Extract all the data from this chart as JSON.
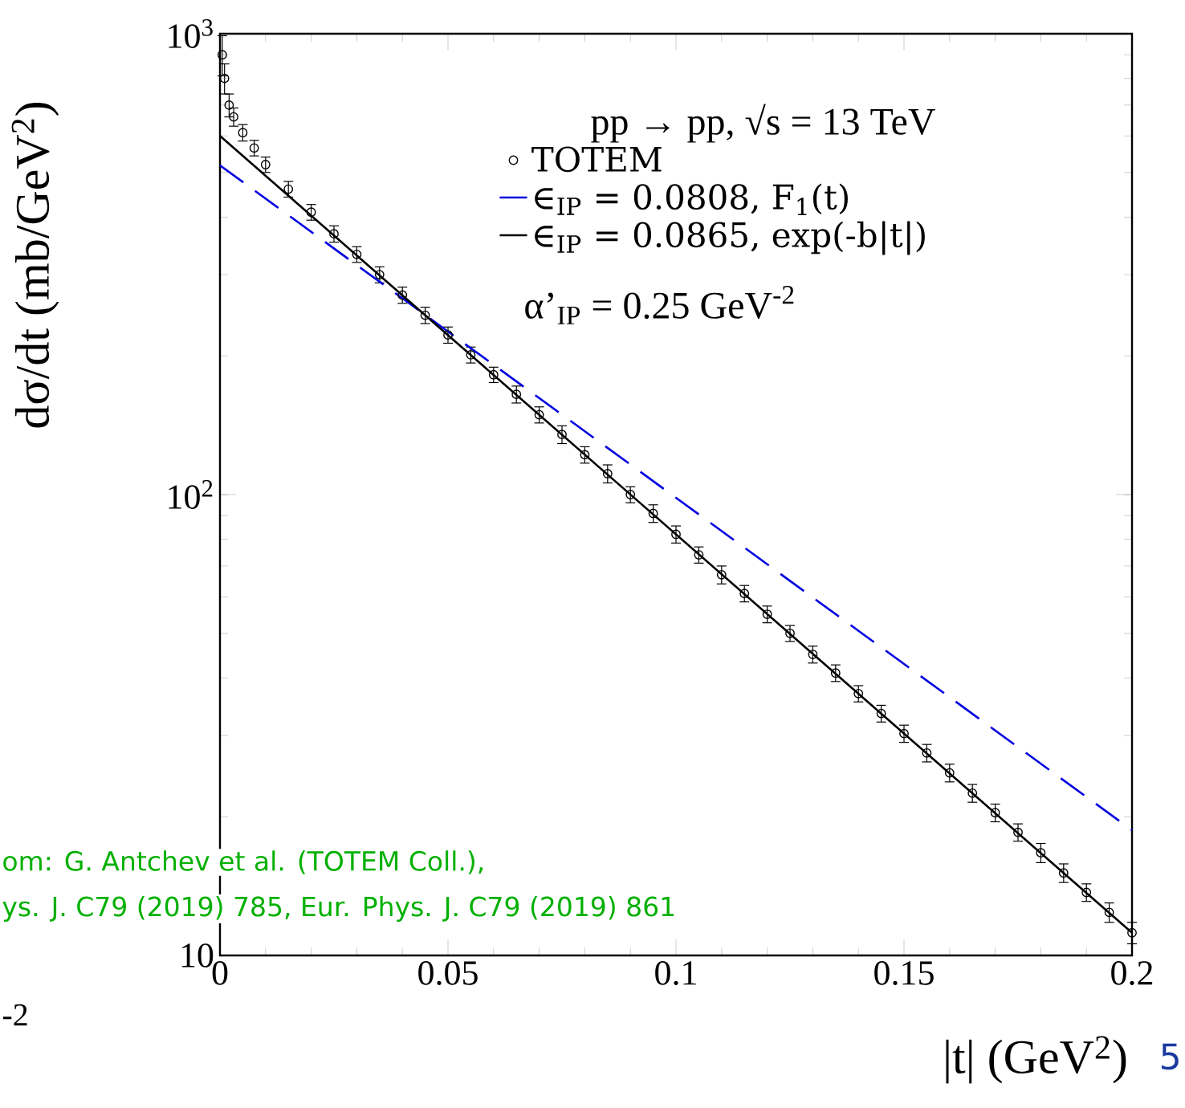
{
  "chart_data": {
    "type": "line",
    "xlabel": "|t| (GeV$^{2}$)",
    "ylabel": "dσ/dt (mb/GeV$^{2}$)",
    "legend_title": "pp → pp,  √s = 13 TeV",
    "log": "y",
    "legend": "top right",
    "xlim": [
      0,
      0.2
    ],
    "ylim": [
      10,
      1000
    ],
    "xticks": [
      0,
      0.05,
      0.1,
      0.15,
      0.2
    ],
    "yticks": [
      {
        "value": 10,
        "label": "10"
      },
      {
        "value": 100,
        "label": "10$^{2}$"
      },
      {
        "value": 1000,
        "label": "10$^{3}$"
      }
    ],
    "series": [
      {
        "name": "TOTEM",
        "type": "scatter",
        "marker": "circle",
        "color": "#000000",
        "x": [
          0.0005,
          0.001,
          0.002,
          0.003,
          0.005,
          0.0075,
          0.01,
          0.015,
          0.02,
          0.025,
          0.03,
          0.035,
          0.04,
          0.045,
          0.05,
          0.055,
          0.06,
          0.065,
          0.07,
          0.075,
          0.08,
          0.085,
          0.09,
          0.095,
          0.1,
          0.105,
          0.11,
          0.115,
          0.12,
          0.125,
          0.13,
          0.135,
          0.14,
          0.145,
          0.15,
          0.155,
          0.16,
          0.165,
          0.17,
          0.175,
          0.18,
          0.185,
          0.19,
          0.195,
          0.2
        ],
        "values": [
          900,
          800,
          700,
          660,
          610,
          565,
          520,
          460,
          410,
          368,
          332,
          300,
          271,
          245,
          222,
          201,
          182,
          165,
          149,
          135,
          122,
          111,
          100,
          91,
          82,
          74,
          67,
          61,
          55,
          50,
          45,
          41,
          37,
          33.5,
          30.3,
          27.5,
          24.9,
          22.5,
          20.4,
          18.5,
          16.7,
          15.1,
          13.7,
          12.4,
          11.2
        ],
        "errors": [
          90,
          60,
          40,
          30,
          25,
          22,
          20,
          18,
          16,
          15,
          13,
          12,
          11,
          10,
          9,
          8,
          7,
          7,
          6,
          6,
          5,
          5,
          4,
          4,
          3.5,
          3,
          3,
          2.5,
          2.3,
          2,
          1.9,
          1.7,
          1.5,
          1.4,
          1.3,
          1.2,
          1.1,
          1,
          0.9,
          0.8,
          0.8,
          0.7,
          0.6,
          0.6,
          0.6
        ]
      },
      {
        "name": "∈$_{IP}$ = 0.0808, F$_{1}$(t)",
        "line_style": "dashed",
        "color": "#0000e0",
        "x": [
          0,
          0.2
        ],
        "values": [
          518,
          18.7
        ]
      },
      {
        "name": "∈$_{IP}$ = 0.0865, exp(-b|t|)",
        "line_style": "solid",
        "color": "#000000",
        "x": [
          0,
          0.2
        ],
        "values": [
          600,
          11.2
        ]
      }
    ],
    "annotations": [
      "α’$_{IP}$ = 0.25 GeV$^{-2}$",
      "om: G. Antchev et al. (TOTEM Coll.),",
      "ys. J. C79 (2019) 785, Eur. Phys. J. C79 (2019) 861",
      "-2",
      "5"
    ]
  }
}
